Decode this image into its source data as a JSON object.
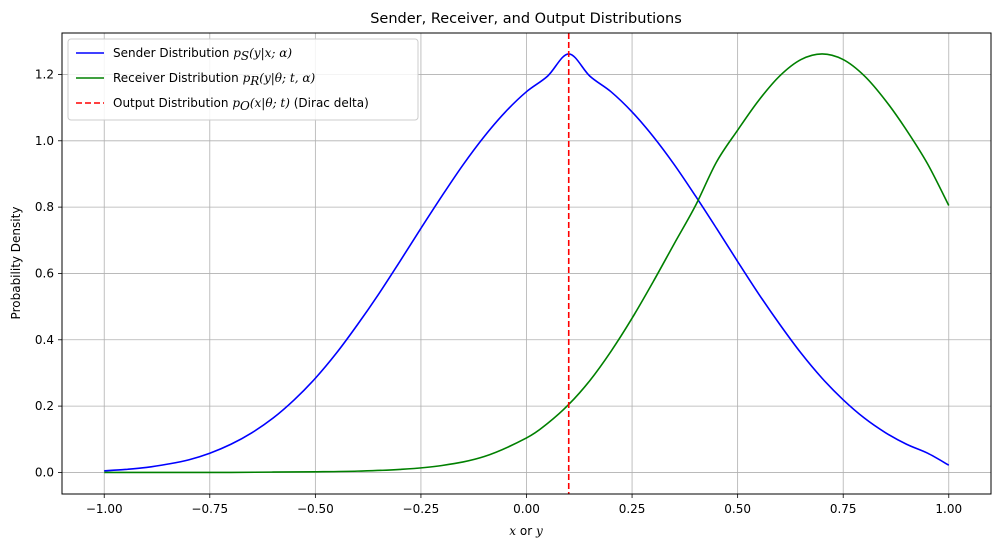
{
  "chart_data": {
    "type": "line",
    "title": "Sender, Receiver, and Output Distributions",
    "xlabel_italic": "x",
    "xlabel_mid": " or ",
    "xlabel_italic2": "y",
    "ylabel": "Probability Density",
    "xlim": [
      -1.1,
      1.1
    ],
    "ylim": [
      -0.065,
      1.325
    ],
    "xticks": [
      -1.0,
      -0.75,
      -0.5,
      -0.25,
      0.0,
      0.25,
      0.5,
      0.75,
      1.0
    ],
    "xtick_labels": [
      "−1.00",
      "−0.75",
      "−0.50",
      "−0.25",
      "0.00",
      "0.25",
      "0.50",
      "0.75",
      "1.00"
    ],
    "yticks": [
      0.0,
      0.2,
      0.4,
      0.6,
      0.8,
      1.0,
      1.2
    ],
    "ytick_labels": [
      "0.0",
      "0.2",
      "0.4",
      "0.6",
      "0.8",
      "1.0",
      "1.2"
    ],
    "grid": true,
    "legend_position": "top-left",
    "series": [
      {
        "name_prefix": "Sender Distribution ",
        "name_math": "p",
        "name_sub": "S",
        "name_rest": "(y|x; α)",
        "name_suffix": "",
        "color": "#0000ff",
        "style": "solid",
        "x": [
          -1.0,
          -0.95,
          -0.9,
          -0.85,
          -0.8,
          -0.75,
          -0.7,
          -0.65,
          -0.6,
          -0.55,
          -0.5,
          -0.45,
          -0.4,
          -0.35,
          -0.3,
          -0.25,
          -0.2,
          -0.15,
          -0.1,
          -0.05,
          0.0,
          0.05,
          0.1,
          0.15,
          0.2,
          0.25,
          0.3,
          0.35,
          0.4,
          0.45,
          0.5,
          0.55,
          0.6,
          0.65,
          0.7,
          0.75,
          0.8,
          0.85,
          0.9,
          0.95,
          1.0
        ],
        "y": [
          0.005,
          0.009,
          0.015,
          0.025,
          0.038,
          0.058,
          0.085,
          0.12,
          0.164,
          0.219,
          0.284,
          0.36,
          0.446,
          0.538,
          0.636,
          0.736,
          0.834,
          0.928,
          1.013,
          1.087,
          1.148,
          1.195,
          1.262,
          1.195,
          1.148,
          1.087,
          1.013,
          0.928,
          0.834,
          0.736,
          0.636,
          0.538,
          0.446,
          0.36,
          0.284,
          0.219,
          0.164,
          0.12,
          0.085,
          0.058,
          0.022
        ]
      },
      {
        "name_prefix": "Receiver Distribution ",
        "name_math": "p",
        "name_sub": "R",
        "name_rest": "(y|θ; t, α)",
        "name_suffix": "",
        "color": "#008000",
        "style": "solid",
        "x": [
          -1.0,
          -0.9,
          -0.8,
          -0.7,
          -0.6,
          -0.5,
          -0.4,
          -0.3,
          -0.2,
          -0.1,
          0.0,
          0.05,
          0.1,
          0.15,
          0.2,
          0.25,
          0.3,
          0.35,
          0.4,
          0.45,
          0.5,
          0.55,
          0.6,
          0.65,
          0.7,
          0.75,
          0.8,
          0.85,
          0.9,
          0.95,
          1.0
        ],
        "y": [
          0.0,
          0.0,
          0.0,
          0.0,
          0.001,
          0.002,
          0.004,
          0.009,
          0.021,
          0.048,
          0.104,
          0.148,
          0.205,
          0.277,
          0.365,
          0.465,
          0.575,
          0.69,
          0.804,
          0.936,
          1.032,
          1.122,
          1.196,
          1.245,
          1.262,
          1.245,
          1.196,
          1.122,
          1.032,
          0.93,
          0.805
        ]
      },
      {
        "name_prefix": "Output Distribution ",
        "name_math": "p",
        "name_sub": "O",
        "name_rest": "(x|θ; t)",
        "name_suffix": " (Dirac delta)",
        "color": "#ff0000",
        "style": "dashed",
        "x_vertical": 0.1
      }
    ]
  }
}
